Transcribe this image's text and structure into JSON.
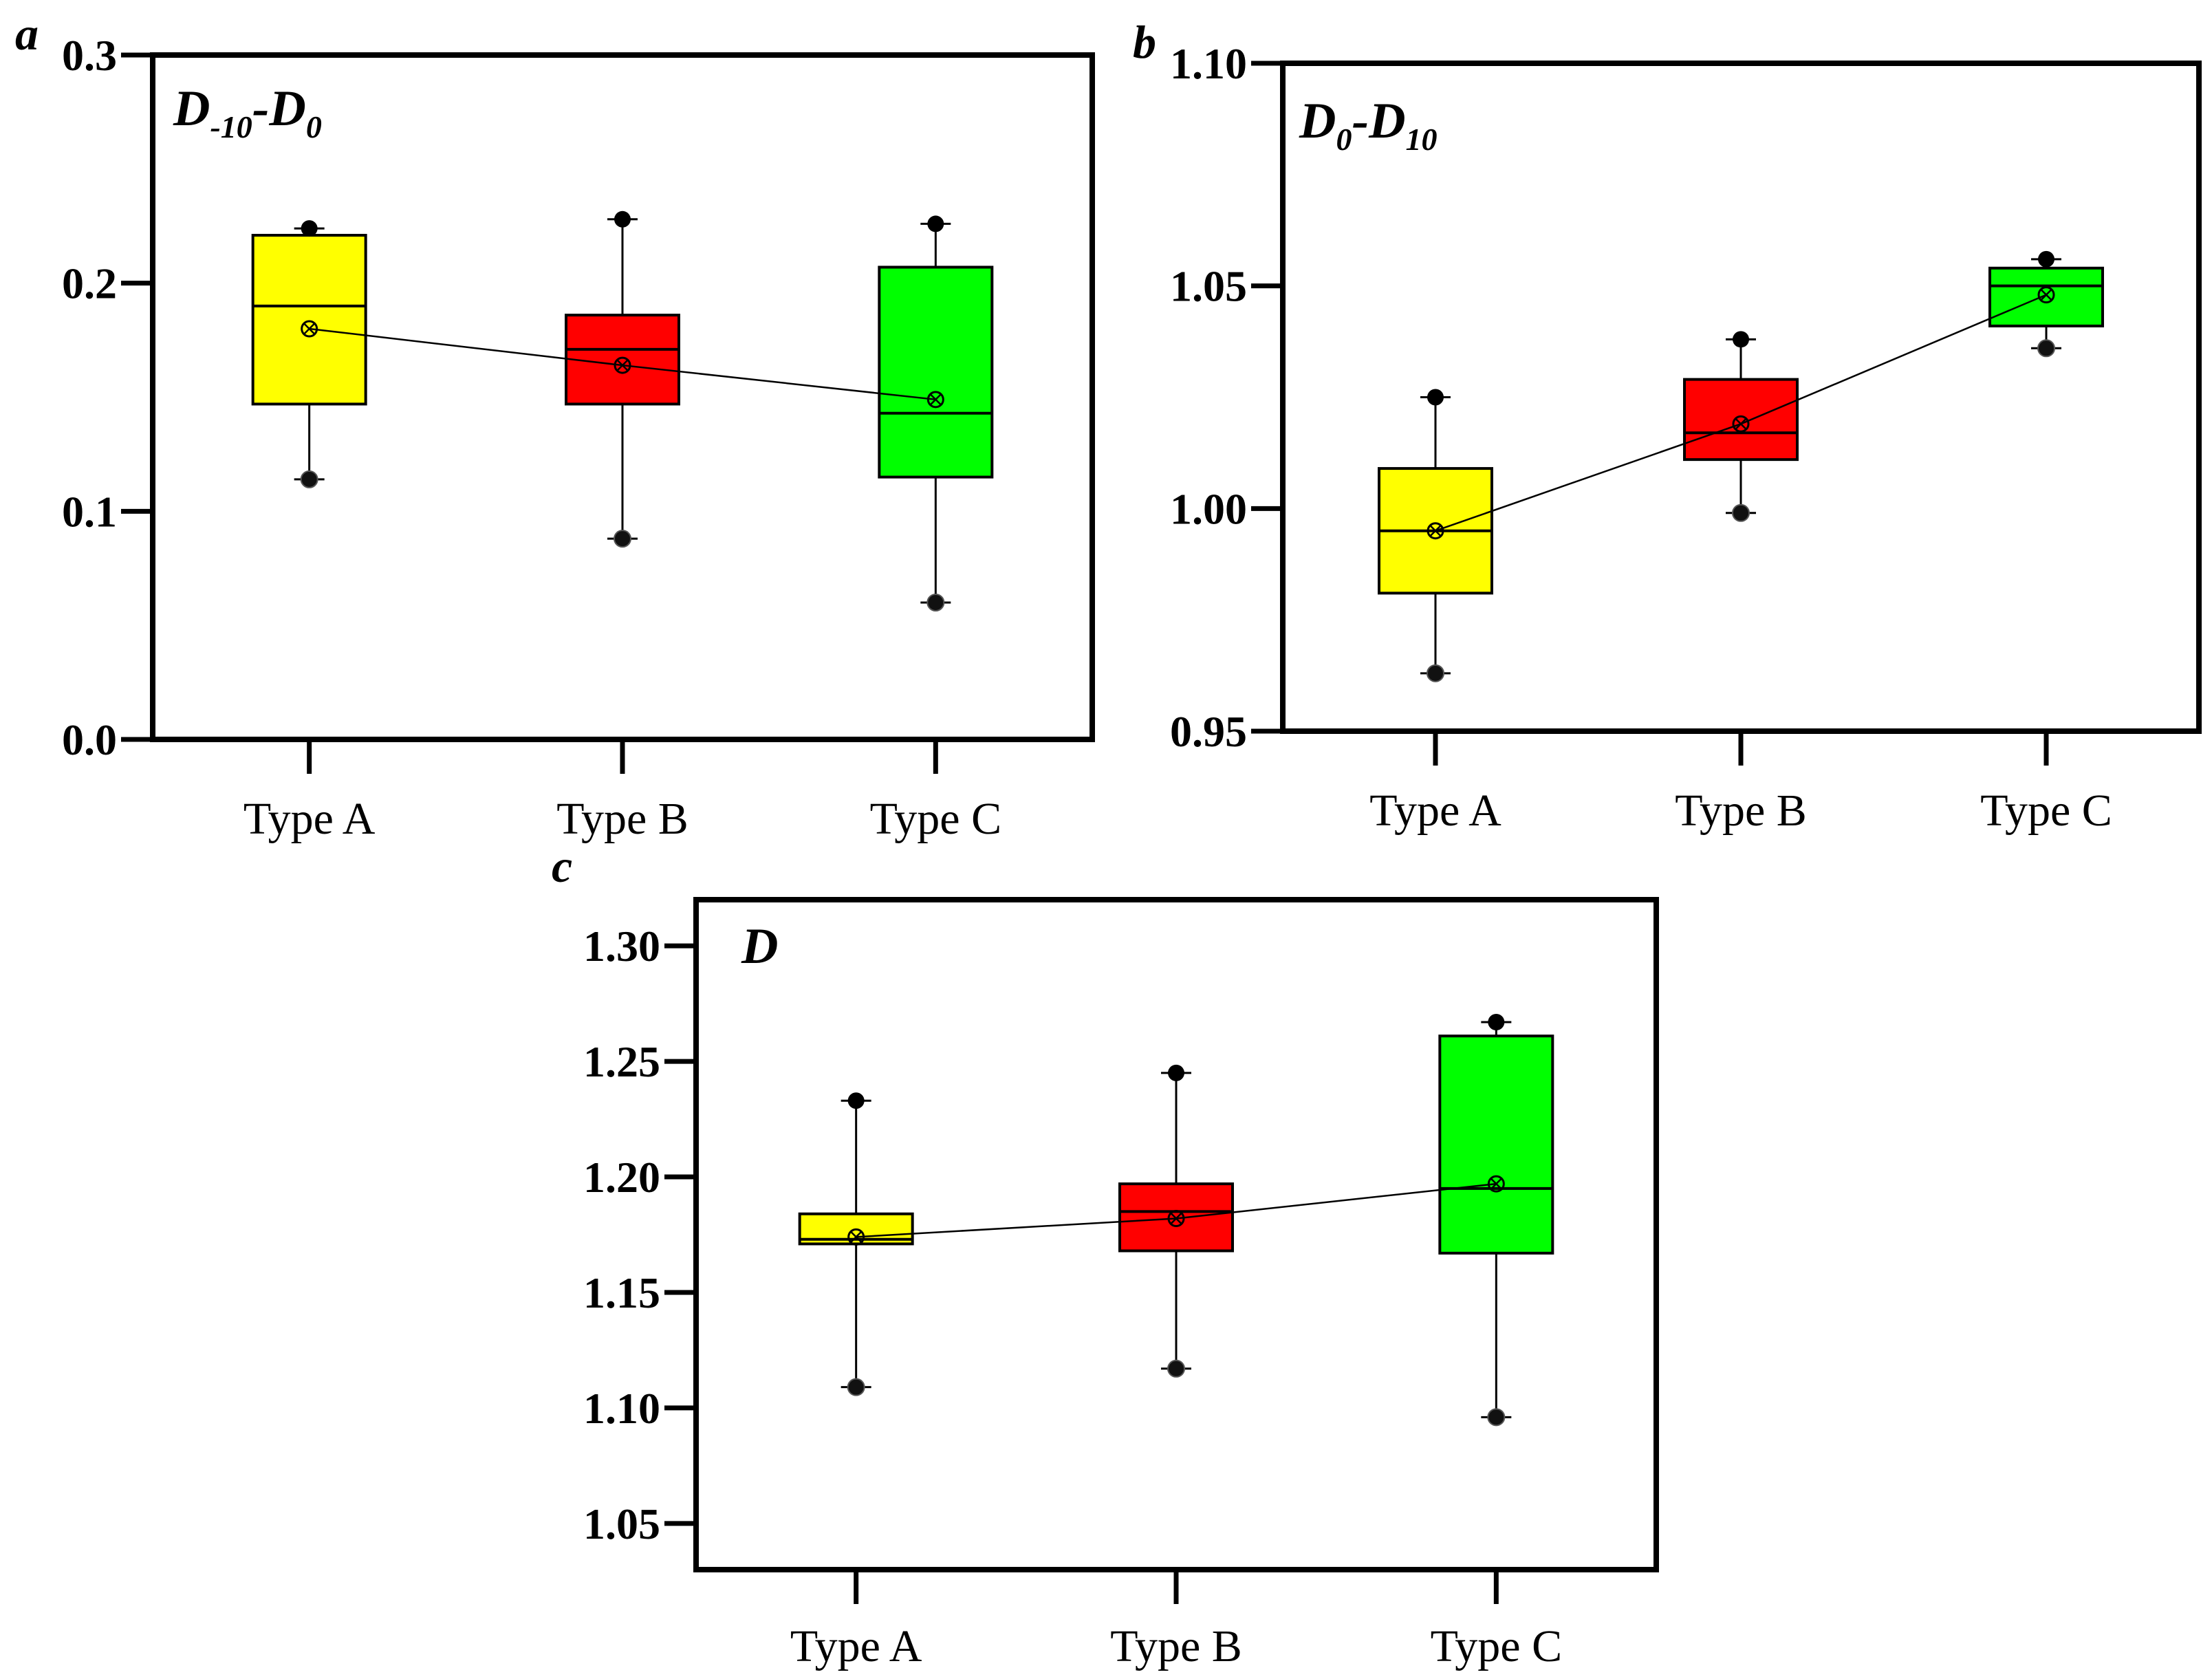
{
  "chart_data": [
    {
      "type": "box",
      "panel_label": "a",
      "title_parts": [
        {
          "text": "D",
          "sub": false
        },
        {
          "text": "-10",
          "sub": true
        },
        {
          "text": "-D",
          "sub": false
        },
        {
          "text": "0",
          "sub": true
        }
      ],
      "categories": [
        "Type A",
        "Type B",
        "Type C"
      ],
      "colors": [
        "#ffff00",
        "#ff0000",
        "#00ff00"
      ],
      "ylim": [
        0.0,
        0.3
      ],
      "yticks": [
        0.0,
        0.1,
        0.2,
        0.3
      ],
      "ytick_labels": [
        "0.0",
        "0.1",
        "0.2",
        "0.3"
      ],
      "boxes": [
        {
          "min": 0.114,
          "q1": 0.147,
          "median": 0.19,
          "q3": 0.221,
          "max": 0.224,
          "mean": 0.18
        },
        {
          "min": 0.088,
          "q1": 0.147,
          "median": 0.171,
          "q3": 0.186,
          "max": 0.228,
          "mean": 0.164
        },
        {
          "min": 0.06,
          "q1": 0.115,
          "median": 0.143,
          "q3": 0.207,
          "max": 0.226,
          "mean": 0.149
        }
      ]
    },
    {
      "type": "box",
      "panel_label": "b",
      "title_parts": [
        {
          "text": "D",
          "sub": false
        },
        {
          "text": "0",
          "sub": true
        },
        {
          "text": "-D",
          "sub": false
        },
        {
          "text": "10",
          "sub": true
        }
      ],
      "categories": [
        "Type A",
        "Type B",
        "Type C"
      ],
      "colors": [
        "#ffff00",
        "#ff0000",
        "#00ff00"
      ],
      "ylim": [
        0.95,
        1.1
      ],
      "yticks": [
        0.95,
        1.0,
        1.05,
        1.1
      ],
      "ytick_labels": [
        "0.95",
        "1.00",
        "1.05",
        "1.10"
      ],
      "boxes": [
        {
          "min": 0.963,
          "q1": 0.981,
          "median": 0.995,
          "q3": 1.009,
          "max": 1.025,
          "mean": 0.995
        },
        {
          "min": 0.999,
          "q1": 1.011,
          "median": 1.017,
          "q3": 1.029,
          "max": 1.038,
          "mean": 1.019
        },
        {
          "min": 1.036,
          "q1": 1.041,
          "median": 1.05,
          "q3": 1.054,
          "max": 1.056,
          "mean": 1.048
        }
      ]
    },
    {
      "type": "box",
      "panel_label": "c",
      "title_parts": [
        {
          "text": "D",
          "sub": false
        }
      ],
      "categories": [
        "Type A",
        "Type B",
        "Type C"
      ],
      "colors": [
        "#ffff00",
        "#ff0000",
        "#00ff00"
      ],
      "ylim": [
        1.03,
        1.32
      ],
      "yticks": [
        1.05,
        1.1,
        1.15,
        1.2,
        1.25,
        1.3
      ],
      "ytick_labels": [
        "1.05",
        "1.10",
        "1.15",
        "1.20",
        "1.25",
        "1.30"
      ],
      "boxes": [
        {
          "min": 1.109,
          "q1": 1.171,
          "median": 1.173,
          "q3": 1.184,
          "max": 1.233,
          "mean": 1.174
        },
        {
          "min": 1.117,
          "q1": 1.168,
          "median": 1.185,
          "q3": 1.197,
          "max": 1.245,
          "mean": 1.182
        },
        {
          "min": 1.096,
          "q1": 1.167,
          "median": 1.195,
          "q3": 1.261,
          "max": 1.267,
          "mean": 1.197
        }
      ]
    }
  ]
}
